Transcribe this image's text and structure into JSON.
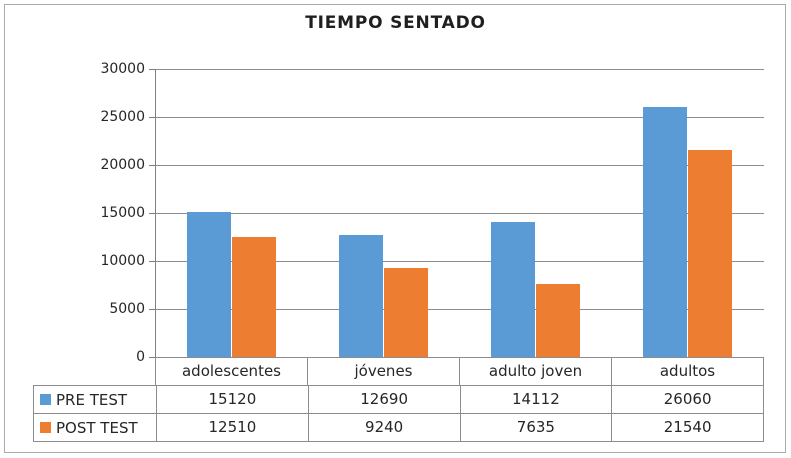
{
  "chart_data": {
    "type": "bar",
    "title": "TIEMPO SENTADO",
    "categories": [
      "adolescentes",
      "jóvenes",
      "adulto joven",
      "adultos"
    ],
    "series": [
      {
        "name": "PRE TEST",
        "color": "#5B9BD5",
        "values": [
          15120,
          12690,
          14112,
          26060
        ]
      },
      {
        "name": "POST TEST",
        "color": "#ED7D31",
        "values": [
          12510,
          9240,
          7635,
          21540
        ]
      }
    ],
    "xlabel": "",
    "ylabel": "",
    "ylim": [
      0,
      30000
    ],
    "ytick_step": 5000,
    "ytick_labels": [
      "0",
      "5000",
      "10000",
      "15000",
      "20000",
      "25000",
      "30000"
    ],
    "grid": "horizontal",
    "legend_position": "data-table-left",
    "data_table_attached": true
  },
  "palette": {
    "gridline": "#8C8C8C",
    "axis": "#7F7F7F",
    "table_border": "#8C8C8C",
    "text": "#262626",
    "title_text": "#1F1F1F",
    "frame_border": "#ABABAB",
    "background": "#FFFFFF"
  }
}
